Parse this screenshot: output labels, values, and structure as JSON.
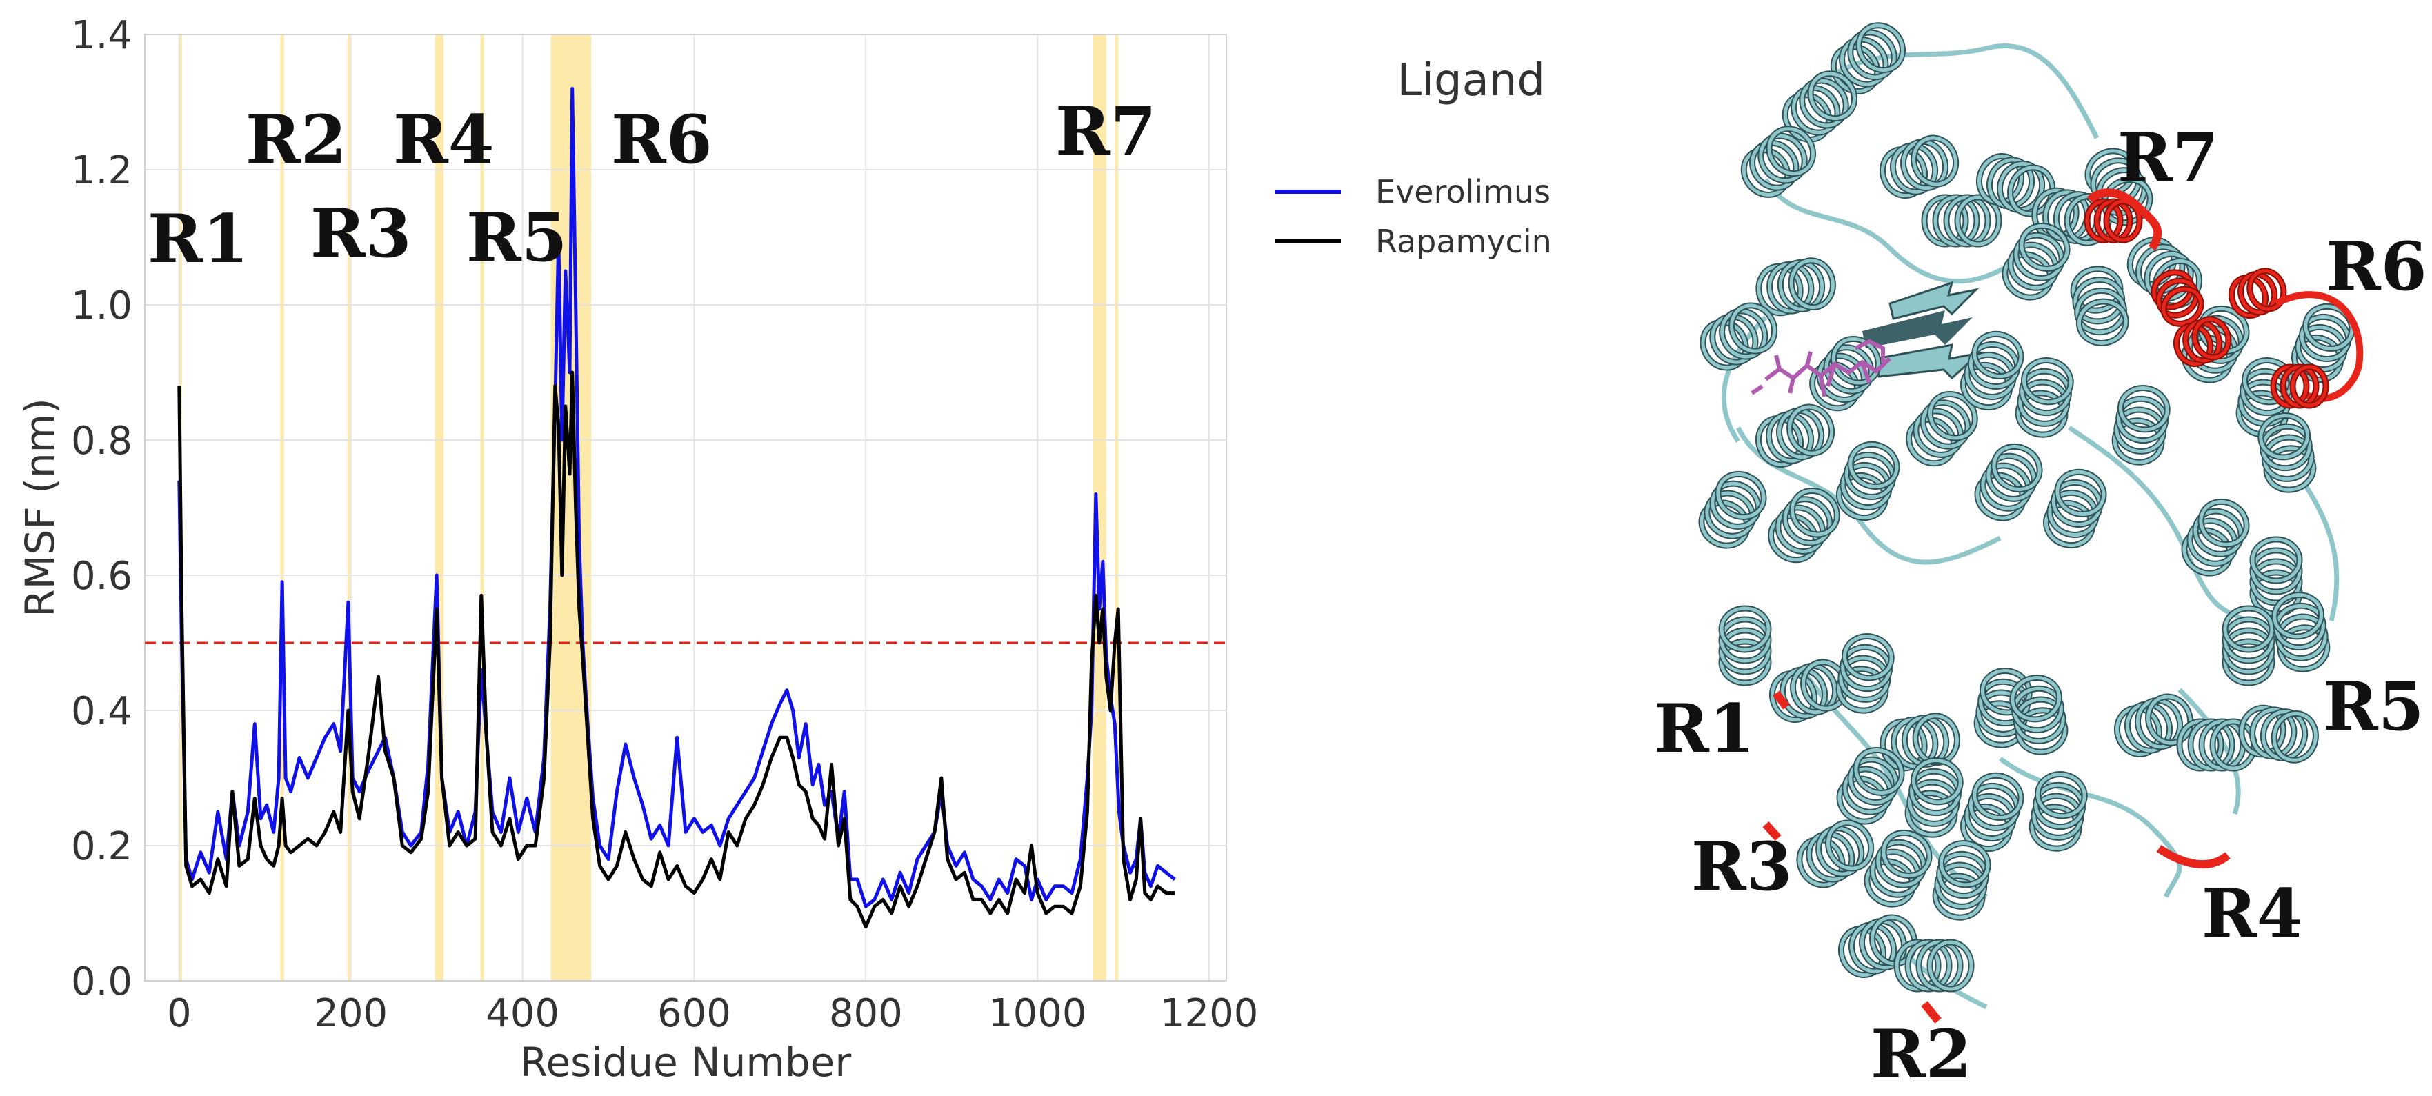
{
  "chart_data": {
    "type": "line",
    "xlabel": "Residue Number",
    "ylabel": "RMSF (nm)",
    "xlim": [
      -40,
      1220
    ],
    "ylim": [
      0.0,
      1.4
    ],
    "xticks": [
      0,
      200,
      400,
      600,
      800,
      1000,
      1200
    ],
    "yticks": [
      0.0,
      0.2,
      0.4,
      0.6,
      0.8,
      1.0,
      1.2,
      1.4
    ],
    "xtick_labels": [
      "0",
      "200",
      "400",
      "600",
      "800",
      "1000",
      "1200"
    ],
    "ytick_labels": [
      "0.0",
      "0.2",
      "0.4",
      "0.6",
      "0.8",
      "1.0",
      "1.2",
      "1.4"
    ],
    "legend_title": "Ligand",
    "legend_position": "outside-right",
    "threshold": {
      "y": 0.5,
      "color": "#e8201a",
      "style": "dashed"
    },
    "regions": [
      {
        "label": "R1",
        "x_range": [
          0,
          3
        ]
      },
      {
        "label": "R2",
        "x_range": [
          118,
          122
        ]
      },
      {
        "label": "R3",
        "x_range": [
          196,
          199
        ]
      },
      {
        "label": "R4",
        "x_range": [
          298,
          308
        ]
      },
      {
        "label": "R5",
        "x_range": [
          351,
          355
        ]
      },
      {
        "label": "R6",
        "x_range": [
          433,
          480
        ]
      },
      {
        "label": "R7",
        "x_range": [
          1064,
          1080
        ]
      },
      {
        "label": "R7",
        "x_range": [
          1090,
          1094
        ]
      }
    ],
    "series": [
      {
        "name": "Everolimus",
        "color": "#1010e8",
        "points": [
          [
            0,
            0.74
          ],
          [
            3,
            0.5
          ],
          [
            8,
            0.18
          ],
          [
            15,
            0.15
          ],
          [
            25,
            0.19
          ],
          [
            35,
            0.16
          ],
          [
            45,
            0.25
          ],
          [
            55,
            0.18
          ],
          [
            62,
            0.28
          ],
          [
            70,
            0.2
          ],
          [
            80,
            0.25
          ],
          [
            88,
            0.38
          ],
          [
            95,
            0.24
          ],
          [
            102,
            0.26
          ],
          [
            110,
            0.22
          ],
          [
            116,
            0.3
          ],
          [
            120,
            0.59
          ],
          [
            124,
            0.3
          ],
          [
            130,
            0.28
          ],
          [
            140,
            0.33
          ],
          [
            150,
            0.3
          ],
          [
            160,
            0.33
          ],
          [
            170,
            0.36
          ],
          [
            180,
            0.38
          ],
          [
            188,
            0.34
          ],
          [
            197,
            0.56
          ],
          [
            202,
            0.3
          ],
          [
            210,
            0.28
          ],
          [
            220,
            0.31
          ],
          [
            232,
            0.34
          ],
          [
            240,
            0.36
          ],
          [
            250,
            0.3
          ],
          [
            260,
            0.22
          ],
          [
            270,
            0.2
          ],
          [
            282,
            0.22
          ],
          [
            290,
            0.32
          ],
          [
            300,
            0.6
          ],
          [
            306,
            0.3
          ],
          [
            315,
            0.22
          ],
          [
            325,
            0.25
          ],
          [
            335,
            0.2
          ],
          [
            345,
            0.25
          ],
          [
            352,
            0.46
          ],
          [
            358,
            0.36
          ],
          [
            365,
            0.25
          ],
          [
            375,
            0.22
          ],
          [
            385,
            0.3
          ],
          [
            395,
            0.22
          ],
          [
            405,
            0.27
          ],
          [
            415,
            0.22
          ],
          [
            425,
            0.33
          ],
          [
            432,
            0.55
          ],
          [
            438,
            0.85
          ],
          [
            442,
            1.1
          ],
          [
            446,
            0.8
          ],
          [
            450,
            1.05
          ],
          [
            455,
            0.9
          ],
          [
            458,
            1.32
          ],
          [
            462,
            1.0
          ],
          [
            466,
            0.65
          ],
          [
            470,
            0.5
          ],
          [
            476,
            0.38
          ],
          [
            482,
            0.27
          ],
          [
            490,
            0.2
          ],
          [
            500,
            0.18
          ],
          [
            510,
            0.28
          ],
          [
            520,
            0.35
          ],
          [
            530,
            0.3
          ],
          [
            540,
            0.26
          ],
          [
            550,
            0.21
          ],
          [
            560,
            0.23
          ],
          [
            570,
            0.2
          ],
          [
            580,
            0.36
          ],
          [
            590,
            0.22
          ],
          [
            600,
            0.24
          ],
          [
            610,
            0.22
          ],
          [
            620,
            0.23
          ],
          [
            630,
            0.2
          ],
          [
            640,
            0.24
          ],
          [
            650,
            0.26
          ],
          [
            660,
            0.28
          ],
          [
            670,
            0.3
          ],
          [
            680,
            0.34
          ],
          [
            690,
            0.38
          ],
          [
            700,
            0.41
          ],
          [
            708,
            0.43
          ],
          [
            715,
            0.4
          ],
          [
            722,
            0.33
          ],
          [
            730,
            0.38
          ],
          [
            738,
            0.29
          ],
          [
            745,
            0.32
          ],
          [
            752,
            0.26
          ],
          [
            760,
            0.28
          ],
          [
            768,
            0.21
          ],
          [
            775,
            0.28
          ],
          [
            782,
            0.15
          ],
          [
            790,
            0.15
          ],
          [
            800,
            0.11
          ],
          [
            810,
            0.12
          ],
          [
            820,
            0.15
          ],
          [
            830,
            0.12
          ],
          [
            840,
            0.16
          ],
          [
            850,
            0.13
          ],
          [
            860,
            0.18
          ],
          [
            870,
            0.2
          ],
          [
            880,
            0.22
          ],
          [
            888,
            0.28
          ],
          [
            895,
            0.2
          ],
          [
            905,
            0.17
          ],
          [
            915,
            0.19
          ],
          [
            925,
            0.15
          ],
          [
            935,
            0.14
          ],
          [
            945,
            0.12
          ],
          [
            955,
            0.15
          ],
          [
            965,
            0.13
          ],
          [
            975,
            0.18
          ],
          [
            985,
            0.17
          ],
          [
            993,
            0.12
          ],
          [
            1000,
            0.15
          ],
          [
            1010,
            0.12
          ],
          [
            1020,
            0.14
          ],
          [
            1030,
            0.14
          ],
          [
            1040,
            0.13
          ],
          [
            1050,
            0.18
          ],
          [
            1058,
            0.3
          ],
          [
            1063,
            0.4
          ],
          [
            1068,
            0.72
          ],
          [
            1072,
            0.55
          ],
          [
            1076,
            0.62
          ],
          [
            1080,
            0.48
          ],
          [
            1085,
            0.42
          ],
          [
            1090,
            0.38
          ],
          [
            1095,
            0.25
          ],
          [
            1100,
            0.2
          ],
          [
            1108,
            0.16
          ],
          [
            1115,
            0.18
          ],
          [
            1120,
            0.24
          ],
          [
            1125,
            0.16
          ],
          [
            1132,
            0.14
          ],
          [
            1140,
            0.17
          ],
          [
            1150,
            0.16
          ],
          [
            1160,
            0.15
          ]
        ]
      },
      {
        "name": "Rapamycin",
        "color": "#000000",
        "points": [
          [
            0,
            0.88
          ],
          [
            3,
            0.55
          ],
          [
            8,
            0.17
          ],
          [
            15,
            0.14
          ],
          [
            25,
            0.15
          ],
          [
            35,
            0.13
          ],
          [
            45,
            0.18
          ],
          [
            55,
            0.14
          ],
          [
            62,
            0.28
          ],
          [
            70,
            0.17
          ],
          [
            80,
            0.18
          ],
          [
            88,
            0.27
          ],
          [
            95,
            0.2
          ],
          [
            102,
            0.18
          ],
          [
            110,
            0.17
          ],
          [
            116,
            0.2
          ],
          [
            120,
            0.27
          ],
          [
            124,
            0.2
          ],
          [
            130,
            0.19
          ],
          [
            140,
            0.2
          ],
          [
            150,
            0.21
          ],
          [
            160,
            0.2
          ],
          [
            170,
            0.22
          ],
          [
            180,
            0.25
          ],
          [
            188,
            0.22
          ],
          [
            197,
            0.4
          ],
          [
            202,
            0.28
          ],
          [
            210,
            0.24
          ],
          [
            220,
            0.33
          ],
          [
            232,
            0.45
          ],
          [
            240,
            0.34
          ],
          [
            250,
            0.3
          ],
          [
            260,
            0.2
          ],
          [
            270,
            0.19
          ],
          [
            282,
            0.21
          ],
          [
            290,
            0.28
          ],
          [
            300,
            0.55
          ],
          [
            306,
            0.3
          ],
          [
            315,
            0.2
          ],
          [
            325,
            0.22
          ],
          [
            335,
            0.2
          ],
          [
            345,
            0.21
          ],
          [
            352,
            0.57
          ],
          [
            358,
            0.36
          ],
          [
            365,
            0.22
          ],
          [
            375,
            0.2
          ],
          [
            385,
            0.24
          ],
          [
            395,
            0.18
          ],
          [
            405,
            0.2
          ],
          [
            415,
            0.2
          ],
          [
            425,
            0.3
          ],
          [
            432,
            0.5
          ],
          [
            438,
            0.88
          ],
          [
            442,
            0.82
          ],
          [
            446,
            0.6
          ],
          [
            450,
            0.85
          ],
          [
            455,
            0.75
          ],
          [
            458,
            0.9
          ],
          [
            462,
            0.7
          ],
          [
            466,
            0.55
          ],
          [
            470,
            0.48
          ],
          [
            476,
            0.36
          ],
          [
            482,
            0.24
          ],
          [
            490,
            0.17
          ],
          [
            500,
            0.15
          ],
          [
            510,
            0.17
          ],
          [
            520,
            0.22
          ],
          [
            530,
            0.18
          ],
          [
            540,
            0.15
          ],
          [
            550,
            0.14
          ],
          [
            560,
            0.19
          ],
          [
            570,
            0.15
          ],
          [
            580,
            0.17
          ],
          [
            590,
            0.14
          ],
          [
            600,
            0.13
          ],
          [
            610,
            0.15
          ],
          [
            620,
            0.18
          ],
          [
            630,
            0.15
          ],
          [
            640,
            0.22
          ],
          [
            650,
            0.2
          ],
          [
            660,
            0.24
          ],
          [
            670,
            0.26
          ],
          [
            680,
            0.29
          ],
          [
            690,
            0.33
          ],
          [
            700,
            0.36
          ],
          [
            708,
            0.36
          ],
          [
            715,
            0.33
          ],
          [
            722,
            0.29
          ],
          [
            730,
            0.28
          ],
          [
            738,
            0.24
          ],
          [
            745,
            0.23
          ],
          [
            752,
            0.21
          ],
          [
            760,
            0.32
          ],
          [
            768,
            0.2
          ],
          [
            775,
            0.24
          ],
          [
            782,
            0.12
          ],
          [
            790,
            0.11
          ],
          [
            800,
            0.08
          ],
          [
            810,
            0.11
          ],
          [
            820,
            0.12
          ],
          [
            830,
            0.1
          ],
          [
            840,
            0.14
          ],
          [
            850,
            0.11
          ],
          [
            860,
            0.14
          ],
          [
            870,
            0.18
          ],
          [
            880,
            0.22
          ],
          [
            888,
            0.3
          ],
          [
            895,
            0.18
          ],
          [
            905,
            0.15
          ],
          [
            915,
            0.16
          ],
          [
            925,
            0.12
          ],
          [
            935,
            0.12
          ],
          [
            945,
            0.1
          ],
          [
            955,
            0.12
          ],
          [
            965,
            0.1
          ],
          [
            975,
            0.15
          ],
          [
            985,
            0.13
          ],
          [
            993,
            0.2
          ],
          [
            1000,
            0.13
          ],
          [
            1010,
            0.1
          ],
          [
            1020,
            0.11
          ],
          [
            1030,
            0.11
          ],
          [
            1040,
            0.1
          ],
          [
            1050,
            0.14
          ],
          [
            1058,
            0.25
          ],
          [
            1063,
            0.47
          ],
          [
            1068,
            0.57
          ],
          [
            1072,
            0.5
          ],
          [
            1076,
            0.55
          ],
          [
            1080,
            0.45
          ],
          [
            1085,
            0.4
          ],
          [
            1090,
            0.5
          ],
          [
            1094,
            0.55
          ],
          [
            1100,
            0.18
          ],
          [
            1108,
            0.12
          ],
          [
            1115,
            0.15
          ],
          [
            1120,
            0.24
          ],
          [
            1125,
            0.13
          ],
          [
            1132,
            0.12
          ],
          [
            1140,
            0.14
          ],
          [
            1150,
            0.13
          ],
          [
            1160,
            0.13
          ]
        ]
      }
    ]
  },
  "structure_panel": {
    "region_labels": [
      "R1",
      "R2",
      "R3",
      "R4",
      "R5",
      "R6",
      "R7"
    ],
    "colors": {
      "protein": "#8fc6c9",
      "protein_dark": "#2e5257",
      "highlight": "#e8251a",
      "ligand": "#b05ab0"
    }
  }
}
